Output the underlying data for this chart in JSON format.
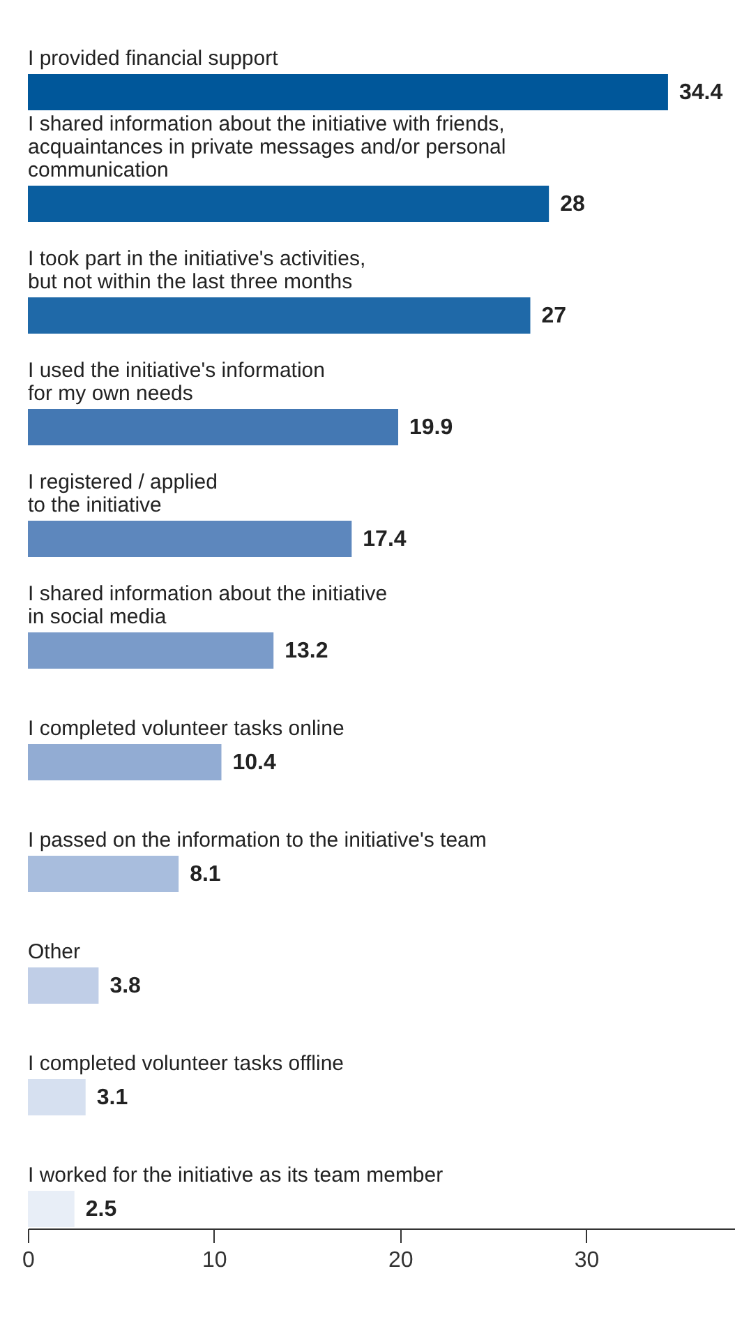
{
  "chart_data": {
    "type": "bar",
    "orientation": "horizontal",
    "categories": [
      "I provided financial support",
      "I shared information about the initiative with friends,\nacquaintances in private messages and/or personal\ncommunication",
      "I took part in the initiative's activities,\nbut not within the last three months",
      "I used the initiative's information\nfor my own needs",
      "I registered / applied\nto the initiative",
      "I shared information about the initiative\nin social media",
      "I completed volunteer tasks online",
      "I passed on the information to the initiative's team",
      "Other",
      "I completed volunteer tasks offline",
      "I worked for the initiative as its team member"
    ],
    "values": [
      34.4,
      28,
      27,
      19.9,
      17.4,
      13.2,
      10.4,
      8.1,
      3.8,
      3.1,
      2.5
    ],
    "colors": [
      "#00579a",
      "#0a5e9f",
      "#1f69a8",
      "#4478b3",
      "#5d87bd",
      "#7a9bc9",
      "#92acd3",
      "#a8bddd",
      "#c0cee7",
      "#d6e0f0",
      "#e8eef7"
    ],
    "xlim": [
      0,
      38
    ],
    "xticks": [
      0,
      10,
      20,
      30
    ],
    "data_labels": true,
    "grid": false
  }
}
